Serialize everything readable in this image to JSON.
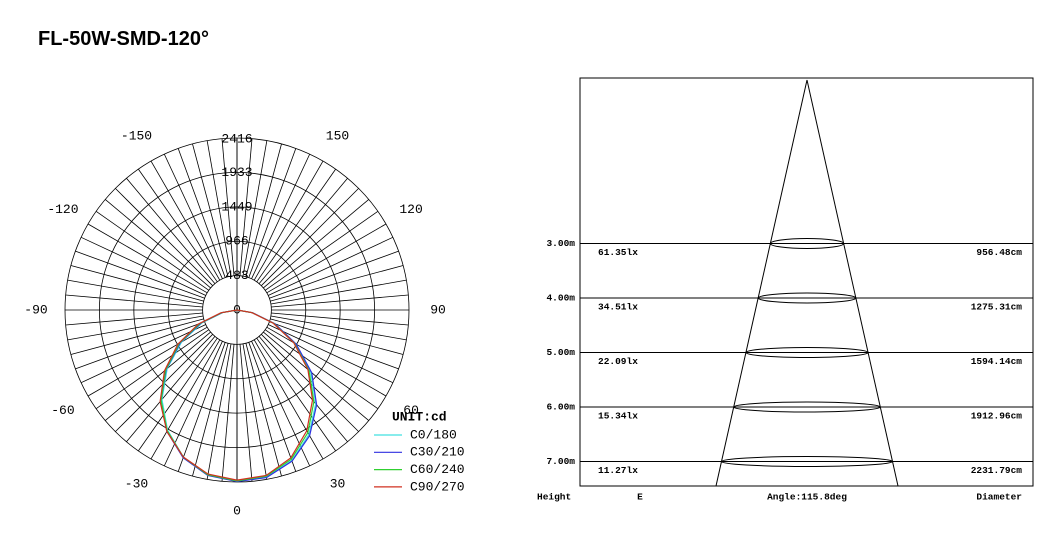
{
  "title": "FL-50W-SMD-120°",
  "chart_data": [
    {
      "type": "polar",
      "rlim": [
        0,
        2416
      ],
      "rticks": [
        0,
        483,
        966,
        1449,
        1933,
        2416
      ],
      "angle_ticks": [
        0,
        30,
        60,
        90,
        120,
        150,
        -150,
        -120,
        -90,
        -60,
        -30
      ],
      "unit_label": "UNIT:cd",
      "angles": [
        -90,
        -80,
        -70,
        -60,
        -50,
        -40,
        -30,
        -20,
        -10,
        0,
        10,
        20,
        30,
        40,
        50,
        60,
        70,
        80,
        90
      ],
      "series": [
        {
          "name": "C0/180",
          "color": "#40e0e0",
          "values": [
            0,
            200,
            520,
            900,
            1280,
            1640,
            1950,
            2200,
            2350,
            2400,
            2380,
            2250,
            2020,
            1720,
            1350,
            950,
            560,
            220,
            0
          ]
        },
        {
          "name": "C30/210",
          "color": "#3030e0",
          "values": [
            0,
            210,
            540,
            920,
            1300,
            1660,
            1970,
            2210,
            2360,
            2410,
            2390,
            2260,
            2040,
            1740,
            1370,
            960,
            570,
            225,
            0
          ]
        },
        {
          "name": "C60/240",
          "color": "#30d030",
          "values": [
            0,
            220,
            560,
            940,
            1310,
            1660,
            1960,
            2200,
            2350,
            2400,
            2370,
            2230,
            1990,
            1680,
            1320,
            930,
            550,
            215,
            0
          ]
        },
        {
          "name": "C90/270",
          "color": "#d03020",
          "values": [
            0,
            230,
            580,
            960,
            1330,
            1680,
            1970,
            2200,
            2340,
            2390,
            2360,
            2210,
            1960,
            1650,
            1300,
            920,
            540,
            210,
            0
          ]
        }
      ]
    },
    {
      "type": "cone",
      "heights": [
        {
          "value": 3,
          "label": "3.00m"
        },
        {
          "value": 4,
          "label": "4.00m"
        },
        {
          "value": 5,
          "label": "5.00m"
        },
        {
          "value": 6,
          "label": "6.00m"
        },
        {
          "value": 7,
          "label": "7.00m"
        }
      ],
      "illuminance": [
        "61.35lx",
        "34.51lx",
        "22.09lx",
        "15.34lx",
        "11.27lx"
      ],
      "diameters": [
        "956.48cm",
        "1275.31cm",
        "1594.14cm",
        "1912.96cm",
        "2231.79cm"
      ],
      "height_header": "Height",
      "illuminance_header": "E",
      "angle_label": "Angle:115.8deg",
      "diameter_header": "Diameter"
    }
  ]
}
